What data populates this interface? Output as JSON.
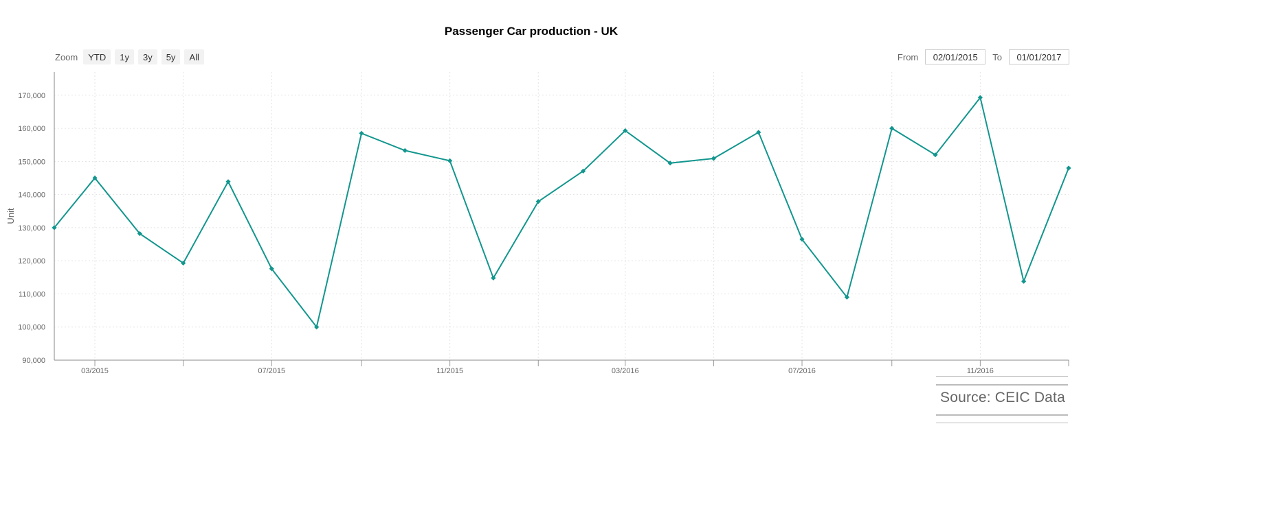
{
  "chart_data": {
    "type": "line",
    "title": "Passenger Car production - UK",
    "ylabel": "Unit",
    "xlabel": "",
    "ylim": [
      90000,
      177000
    ],
    "y_ticks": [
      90000,
      100000,
      110000,
      120000,
      130000,
      140000,
      150000,
      160000,
      170000
    ],
    "y_tick_labels": [
      "90,000",
      "100,000",
      "110,000",
      "120,000",
      "130,000",
      "140,000",
      "150,000",
      "160,000",
      "170,000"
    ],
    "x_range": [
      "2015-02-01",
      "2017-01-01"
    ],
    "x_tick_labels": [
      {
        "date": "2015-03-01",
        "label": "03/2015"
      },
      {
        "date": "2015-07-01",
        "label": "07/2015"
      },
      {
        "date": "2015-11-01",
        "label": "11/2015"
      },
      {
        "date": "2016-03-01",
        "label": "03/2016"
      },
      {
        "date": "2016-07-01",
        "label": "07/2016"
      },
      {
        "date": "2016-11-01",
        "label": "11/2016"
      }
    ],
    "x_minor_ticks": [
      "2015-05-01",
      "2015-09-01",
      "2016-01-01",
      "2016-05-01",
      "2016-09-01",
      "2017-01-01"
    ],
    "grid": true,
    "series_color": "#12968e",
    "series": [
      {
        "name": "",
        "x": [
          "2015-02-01",
          "2015-03-01",
          "2015-04-01",
          "2015-05-01",
          "2015-06-01",
          "2015-07-01",
          "2015-08-01",
          "2015-09-01",
          "2015-10-01",
          "2015-11-01",
          "2015-12-01",
          "2016-01-01",
          "2016-02-01",
          "2016-03-01",
          "2016-04-01",
          "2016-05-01",
          "2016-06-01",
          "2016-07-01",
          "2016-08-01",
          "2016-09-01",
          "2016-10-01",
          "2016-11-01",
          "2016-12-01",
          "2017-01-01"
        ],
        "values": [
          130000,
          145000,
          128200,
          119300,
          143900,
          117600,
          100000,
          158500,
          153300,
          150200,
          114800,
          137900,
          147100,
          159300,
          149500,
          150900,
          158800,
          126500,
          109000,
          160000,
          152000,
          169300,
          113800,
          148000
        ]
      }
    ]
  },
  "zoom": {
    "label": "Zoom",
    "buttons": [
      "YTD",
      "1y",
      "3y",
      "5y",
      "All"
    ]
  },
  "range": {
    "from_label": "From",
    "from_value": "02/01/2015",
    "to_label": "To",
    "to_value": "01/01/2017"
  },
  "source": "Source: CEIC Data"
}
